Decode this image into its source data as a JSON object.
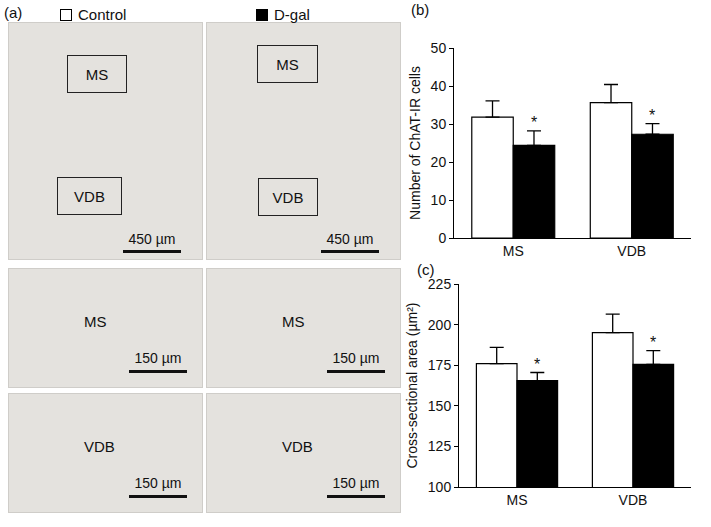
{
  "panel_a": {
    "label": "(a)",
    "overview": {
      "regions": [
        "MS",
        "VDB"
      ],
      "scale_bar": "450 µm"
    },
    "close_ups": [
      {
        "region": "MS",
        "scale_bar": "150 µm"
      },
      {
        "region": "VDB",
        "scale_bar": "150 µm"
      }
    ]
  },
  "chart_data": [
    {
      "type": "bar",
      "panel": "(b)",
      "y_label": "Number of ChAT-IR cells",
      "categories": [
        "MS",
        "VDB"
      ],
      "series": [
        {
          "name": "Control",
          "color": "#ffffff",
          "values": [
            31.8,
            35.6
          ],
          "errors": [
            4.3,
            4.8
          ]
        },
        {
          "name": "D-gal",
          "color": "#000000",
          "values": [
            24.4,
            27.3
          ],
          "errors": [
            3.8,
            2.8
          ]
        }
      ],
      "ylim": [
        0,
        50
      ],
      "yticks": [
        0,
        10,
        20,
        30,
        40,
        50
      ],
      "grid": false,
      "annotations": [
        {
          "category": "MS",
          "series": "D-gal",
          "text": "*"
        },
        {
          "category": "VDB",
          "series": "D-gal",
          "text": "*"
        }
      ]
    },
    {
      "type": "bar",
      "panel": "(c)",
      "y_label": "Cross-sectional area (µm²)",
      "categories": [
        "MS",
        "VDB"
      ],
      "series": [
        {
          "name": "Control",
          "color": "#ffffff",
          "values": [
            176,
            195
          ],
          "errors": [
            10,
            11.5
          ]
        },
        {
          "name": "D-gal",
          "color": "#000000",
          "values": [
            165.5,
            175.5
          ],
          "errors": [
            5,
            8.5
          ]
        }
      ],
      "ylim": [
        100,
        225
      ],
      "yticks": [
        100,
        125,
        150,
        175,
        200,
        225
      ],
      "grid": false,
      "annotations": [
        {
          "category": "MS",
          "series": "D-gal",
          "text": "*"
        },
        {
          "category": "VDB",
          "series": "D-gal",
          "text": "*"
        }
      ]
    }
  ]
}
